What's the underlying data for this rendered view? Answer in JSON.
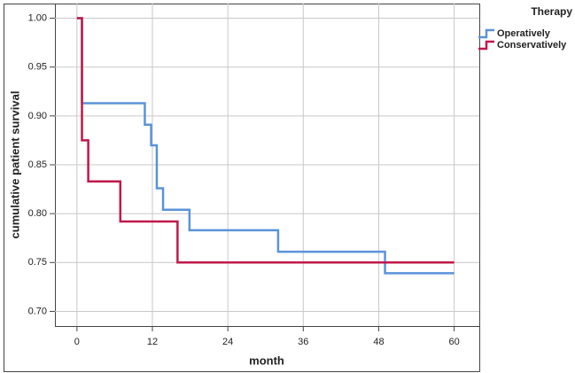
{
  "chart_data": {
    "type": "step",
    "x_label": "month",
    "y_label": "cumulative patient survival",
    "legend_title": "Therapy",
    "legend": "top-right",
    "xlim": [
      -3.5,
      64
    ],
    "ylim": [
      0.685,
      1.015
    ],
    "xticks": [
      0,
      12,
      24,
      36,
      48,
      60
    ],
    "yticks": [
      {
        "value": 1.0,
        "label": "1.00"
      },
      0.95,
      {
        "value": 0.9,
        "label": "0.90"
      },
      0.85,
      {
        "value": 0.8,
        "label": "0.80"
      },
      0.75,
      {
        "value": 0.7,
        "label": "0.70"
      }
    ],
    "grid": true,
    "series": [
      {
        "name": "Operatively",
        "color": "#5b93d9",
        "x": [
          0,
          0.8,
          10.8,
          11.8,
          12.7,
          13.7,
          17.9,
          32,
          49,
          60
        ],
        "values": [
          1.0,
          0.913,
          0.891,
          0.87,
          0.826,
          0.804,
          0.783,
          0.761,
          0.739,
          0.739
        ]
      },
      {
        "name": "Conservatively",
        "color": "#c0184a",
        "x": [
          0,
          0.8,
          1.8,
          6.9,
          16,
          60
        ],
        "values": [
          1.0,
          0.875,
          0.833,
          0.792,
          0.75,
          0.75
        ]
      }
    ]
  }
}
